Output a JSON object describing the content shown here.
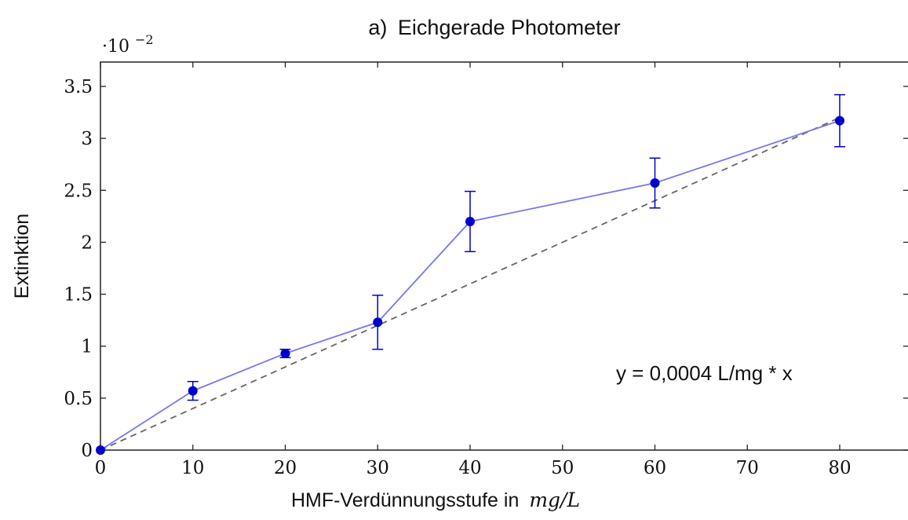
{
  "chart_data": {
    "type": "line",
    "title_prefix": "a)",
    "title": "Eichgerade Photometer",
    "xlabel": "HMF-Verdünnungsstufe in",
    "xlabel_unit": "mg/L",
    "ylabel": "Extinktion",
    "y_scale_factor": "·10",
    "y_scale_exponent": "−2",
    "xlim": [
      0,
      88
    ],
    "ylim": [
      0,
      3.75
    ],
    "x_ticks": [
      0,
      10,
      20,
      30,
      40,
      50,
      60,
      70,
      80
    ],
    "y_ticks": [
      0,
      0.5,
      1,
      1.5,
      2,
      2.5,
      3,
      3.5
    ],
    "y_tick_labels": [
      "0",
      "0.5",
      "1",
      "1.5",
      "2",
      "2.5",
      "3",
      "3.5"
    ],
    "grid": false,
    "series": [
      {
        "x": [
          0,
          10,
          20,
          30,
          40,
          60,
          80
        ],
        "y": [
          0,
          0.57,
          0.93,
          1.23,
          2.2,
          2.57,
          3.17
        ],
        "error": [
          0,
          0.09,
          0.04,
          0.26,
          0.29,
          0.24,
          0.25
        ],
        "color": "#0000cc",
        "line_color": "#7777ee"
      }
    ],
    "fit_line": {
      "x": [
        0,
        80
      ],
      "y": [
        0,
        3.2
      ],
      "color": "#666666",
      "style": "dashed"
    },
    "annotation": "y = 0,0004 L/mg * x"
  }
}
